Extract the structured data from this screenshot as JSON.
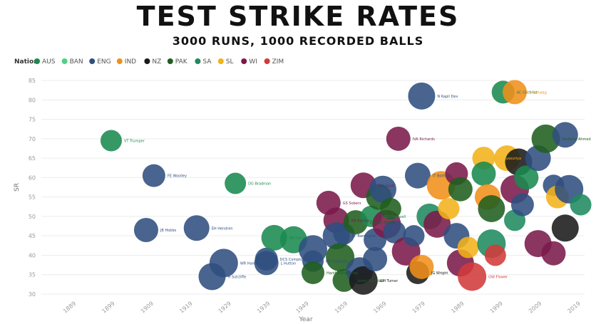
{
  "title": "TEST STRIKE RATES",
  "subtitle": "3000 RUNS, 1000 RECORDED BALLS",
  "chart_data": {
    "type": "scatter",
    "xlabel": "Year",
    "ylabel": "SR",
    "xlim": [
      1880,
      2020
    ],
    "ylim": [
      30,
      85
    ],
    "x_ticks": [
      "1889",
      "1899",
      "1909",
      "1919",
      "1929",
      "1939",
      "1949",
      "1959",
      "1969",
      "1979",
      "1989",
      "1999",
      "2009",
      "2019"
    ],
    "y_ticks": [
      30,
      35,
      40,
      45,
      50,
      55,
      60,
      65,
      70,
      75,
      80,
      85
    ],
    "grid": true,
    "legend": {
      "title": "Nation",
      "placement": "top-left",
      "entries": [
        {
          "name": "AUS",
          "color": "#1a8a4f"
        },
        {
          "name": "BAN",
          "color": "#4fd08a"
        },
        {
          "name": "ENG",
          "color": "#2f4f7f"
        },
        {
          "name": "IND",
          "color": "#f0901a"
        },
        {
          "name": "NZ",
          "color": "#1a1a1a"
        },
        {
          "name": "PAK",
          "color": "#1f5f1f"
        },
        {
          "name": "SA",
          "color": "#1f8a5f"
        },
        {
          "name": "SL",
          "color": "#f2b21a"
        },
        {
          "name": "WI",
          "color": "#7a1a4a"
        },
        {
          "name": "ZIM",
          "color": "#d23a3a"
        }
      ]
    },
    "points": [
      {
        "name": "VT Trumper",
        "nation": "AUS",
        "x": 1898,
        "y": 69.5
      },
      {
        "name": "FE Woolley",
        "nation": "ENG",
        "x": 1909,
        "y": 60.5
      },
      {
        "name": "JB Hobbs",
        "nation": "ENG",
        "x": 1907,
        "y": 46.5
      },
      {
        "name": "EH Hendren",
        "nation": "ENG",
        "x": 1920,
        "y": 47
      },
      {
        "name": "H Sutcliffe",
        "nation": "ENG",
        "x": 1924,
        "y": 34.5
      },
      {
        "name": "WR Hammond",
        "nation": "ENG",
        "x": 1927,
        "y": 38
      },
      {
        "name": "DG Bradman",
        "nation": "AUS",
        "x": 1930,
        "y": 58.5
      },
      {
        "name": "DCS Compton",
        "nation": "ENG",
        "x": 1938,
        "y": 39
      },
      {
        "name": "L Hutton",
        "nation": "ENG",
        "x": 1938,
        "y": 38
      },
      {
        "name": "RN Harvey",
        "nation": "AUS",
        "x": 1940,
        "y": 44.5
      },
      {
        "name": "",
        "nation": "AUS",
        "x": 1945,
        "y": 44
      },
      {
        "name": "",
        "nation": "ENG",
        "x": 1950,
        "y": 41.5
      },
      {
        "name": "MC Cowdrey",
        "nation": "ENG",
        "x": 1950,
        "y": 38.5
      },
      {
        "name": "Hanif Mohammad",
        "nation": "PAK",
        "x": 1950,
        "y": 35.5
      },
      {
        "name": "GS Sobers",
        "nation": "WI",
        "x": 1954,
        "y": 53.5
      },
      {
        "name": "RB Kanhai",
        "nation": "WI",
        "x": 1956,
        "y": 49
      },
      {
        "name": "KF Barrington",
        "nation": "ENG",
        "x": 1956,
        "y": 45
      },
      {
        "name": "",
        "nation": "PAK",
        "x": 1957,
        "y": 39.5
      },
      {
        "name": "",
        "nation": "ENG",
        "x": 1958,
        "y": 45.5
      },
      {
        "name": "Javed Miandad",
        "nation": "PAK",
        "x": 1958,
        "y": 33.5
      },
      {
        "name": "Zaheer Abbas",
        "nation": "PAK",
        "x": 1961,
        "y": 48.5
      },
      {
        "name": "CH Lloyd",
        "nation": "WI",
        "x": 1963,
        "y": 58
      },
      {
        "name": "",
        "nation": "ENG",
        "x": 1962,
        "y": 36
      },
      {
        "name": "GM Turner",
        "nation": "NZ",
        "x": 1963,
        "y": 33.5
      },
      {
        "name": "GS Chappell",
        "nation": "AUS",
        "x": 1965,
        "y": 50
      },
      {
        "name": "",
        "nation": "ENG",
        "x": 1966,
        "y": 44
      },
      {
        "name": "",
        "nation": "ENG",
        "x": 1966,
        "y": 39
      },
      {
        "name": "",
        "nation": "PAK",
        "x": 1967,
        "y": 55
      },
      {
        "name": "",
        "nation": "ENG",
        "x": 1968,
        "y": 57
      },
      {
        "name": "",
        "nation": "WI",
        "x": 1969,
        "y": 48
      },
      {
        "name": "",
        "nation": "PAK",
        "x": 1970,
        "y": 52
      },
      {
        "name": "",
        "nation": "ENG",
        "x": 1971,
        "y": 46
      },
      {
        "name": "IVA Richards",
        "nation": "WI",
        "x": 1972,
        "y": 70
      },
      {
        "name": "IT Botham",
        "nation": "ENG",
        "x": 1977,
        "y": 60.5
      },
      {
        "name": "N Kapil Dev",
        "nation": "ENG",
        "x": 1978,
        "y": 81
      },
      {
        "name": "",
        "nation": "WI",
        "x": 1974,
        "y": 41
      },
      {
        "name": "",
        "nation": "ENG",
        "x": 1976,
        "y": 45
      },
      {
        "name": "JG Wright",
        "nation": "NZ",
        "x": 1977,
        "y": 35.5
      },
      {
        "name": "",
        "nation": "IND",
        "x": 1978,
        "y": 37
      },
      {
        "name": "",
        "nation": "SA",
        "x": 1980,
        "y": 50
      },
      {
        "name": "",
        "nation": "WI",
        "x": 1982,
        "y": 48
      },
      {
        "name": "",
        "nation": "IND",
        "x": 1983,
        "y": 58
      },
      {
        "name": "",
        "nation": "SL",
        "x": 1985,
        "y": 52
      },
      {
        "name": "",
        "nation": "WI",
        "x": 1987,
        "y": 61
      },
      {
        "name": "",
        "nation": "PAK",
        "x": 1988,
        "y": 57
      },
      {
        "name": "",
        "nation": "ENG",
        "x": 1987,
        "y": 45
      },
      {
        "name": "",
        "nation": "WI",
        "x": 1988,
        "y": 38
      },
      {
        "name": "GW Flower",
        "nation": "ZIM",
        "x": 1991,
        "y": 34.5
      },
      {
        "name": "",
        "nation": "SL",
        "x": 1990,
        "y": 42
      },
      {
        "name": "ST Jayasuriya",
        "nation": "SL",
        "x": 1994,
        "y": 65
      },
      {
        "name": "",
        "nation": "AUS",
        "x": 1994,
        "y": 61
      },
      {
        "name": "",
        "nation": "IND",
        "x": 1995,
        "y": 55
      },
      {
        "name": "",
        "nation": "PAK",
        "x": 1996,
        "y": 52
      },
      {
        "name": "",
        "nation": "SA",
        "x": 1996,
        "y": 43
      },
      {
        "name": "",
        "nation": "ZIM",
        "x": 1997,
        "y": 40
      },
      {
        "name": "AC Gilchrist",
        "nation": "AUS",
        "x": 1999,
        "y": 82
      },
      {
        "name": "V Sehwag",
        "nation": "IND",
        "x": 2002,
        "y": 82
      },
      {
        "name": "",
        "nation": "SL",
        "x": 2000,
        "y": 65
      },
      {
        "name": "",
        "nation": "NZ",
        "x": 2003,
        "y": 64
      },
      {
        "name": "",
        "nation": "WI",
        "x": 2002,
        "y": 57
      },
      {
        "name": "",
        "nation": "SA",
        "x": 2002,
        "y": 49
      },
      {
        "name": "",
        "nation": "ENG",
        "x": 2004,
        "y": 53
      },
      {
        "name": "",
        "nation": "AUS",
        "x": 2005,
        "y": 60
      },
      {
        "name": "",
        "nation": "ENG",
        "x": 2008,
        "y": 65
      },
      {
        "name": "",
        "nation": "WI",
        "x": 2008,
        "y": 43
      },
      {
        "name": "Sarfaraz Ahmed",
        "nation": "PAK",
        "x": 2010,
        "y": 70
      },
      {
        "name": "",
        "nation": "ENG",
        "x": 2012,
        "y": 58
      },
      {
        "name": "",
        "nation": "SL",
        "x": 2013,
        "y": 55
      },
      {
        "name": "",
        "nation": "WI",
        "x": 2012,
        "y": 40.5
      },
      {
        "name": "",
        "nation": "ENG",
        "x": 2015,
        "y": 71
      },
      {
        "name": "",
        "nation": "NZ",
        "x": 2015,
        "y": 47
      },
      {
        "name": "",
        "nation": "ENG",
        "x": 2016,
        "y": 57
      },
      {
        "name": "",
        "nation": "SA",
        "x": 2019,
        "y": 53
      }
    ]
  }
}
